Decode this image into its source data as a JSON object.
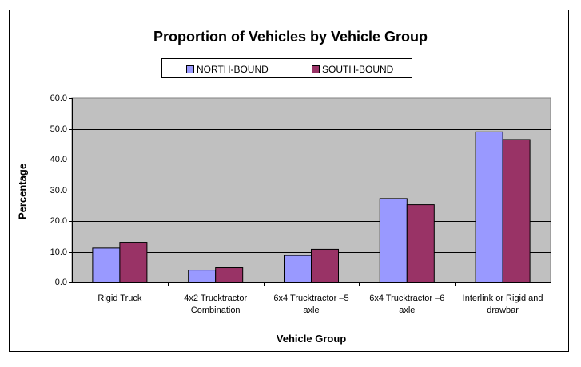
{
  "chart_data": {
    "type": "bar",
    "title": "Proportion of Vehicles by Vehicle Group",
    "xlabel": "Vehicle Group",
    "ylabel": "Percentage",
    "categories": [
      [
        "Rigid Truck"
      ],
      [
        "4x2 Trucktractor",
        "Combination"
      ],
      [
        "6x4 Trucktractor –5",
        "axle"
      ],
      [
        "6x4 Trucktractor –6",
        "axle"
      ],
      [
        "Interlink or Rigid and",
        "drawbar"
      ]
    ],
    "series": [
      {
        "name": "NORTH-BOUND",
        "color": "#9999ff",
        "values": [
          11.2,
          4.0,
          8.8,
          27.3,
          49.0
        ]
      },
      {
        "name": "SOUTH-BOUND",
        "color": "#993366",
        "values": [
          13.1,
          4.8,
          10.8,
          25.3,
          46.5
        ]
      }
    ],
    "ylim": [
      0,
      60
    ],
    "yticks": [
      "0.0",
      "10.0",
      "20.0",
      "30.0",
      "40.0",
      "50.0",
      "60.0"
    ],
    "grid": true,
    "plot_background": "#c0c0c0",
    "legend_position": "top"
  }
}
